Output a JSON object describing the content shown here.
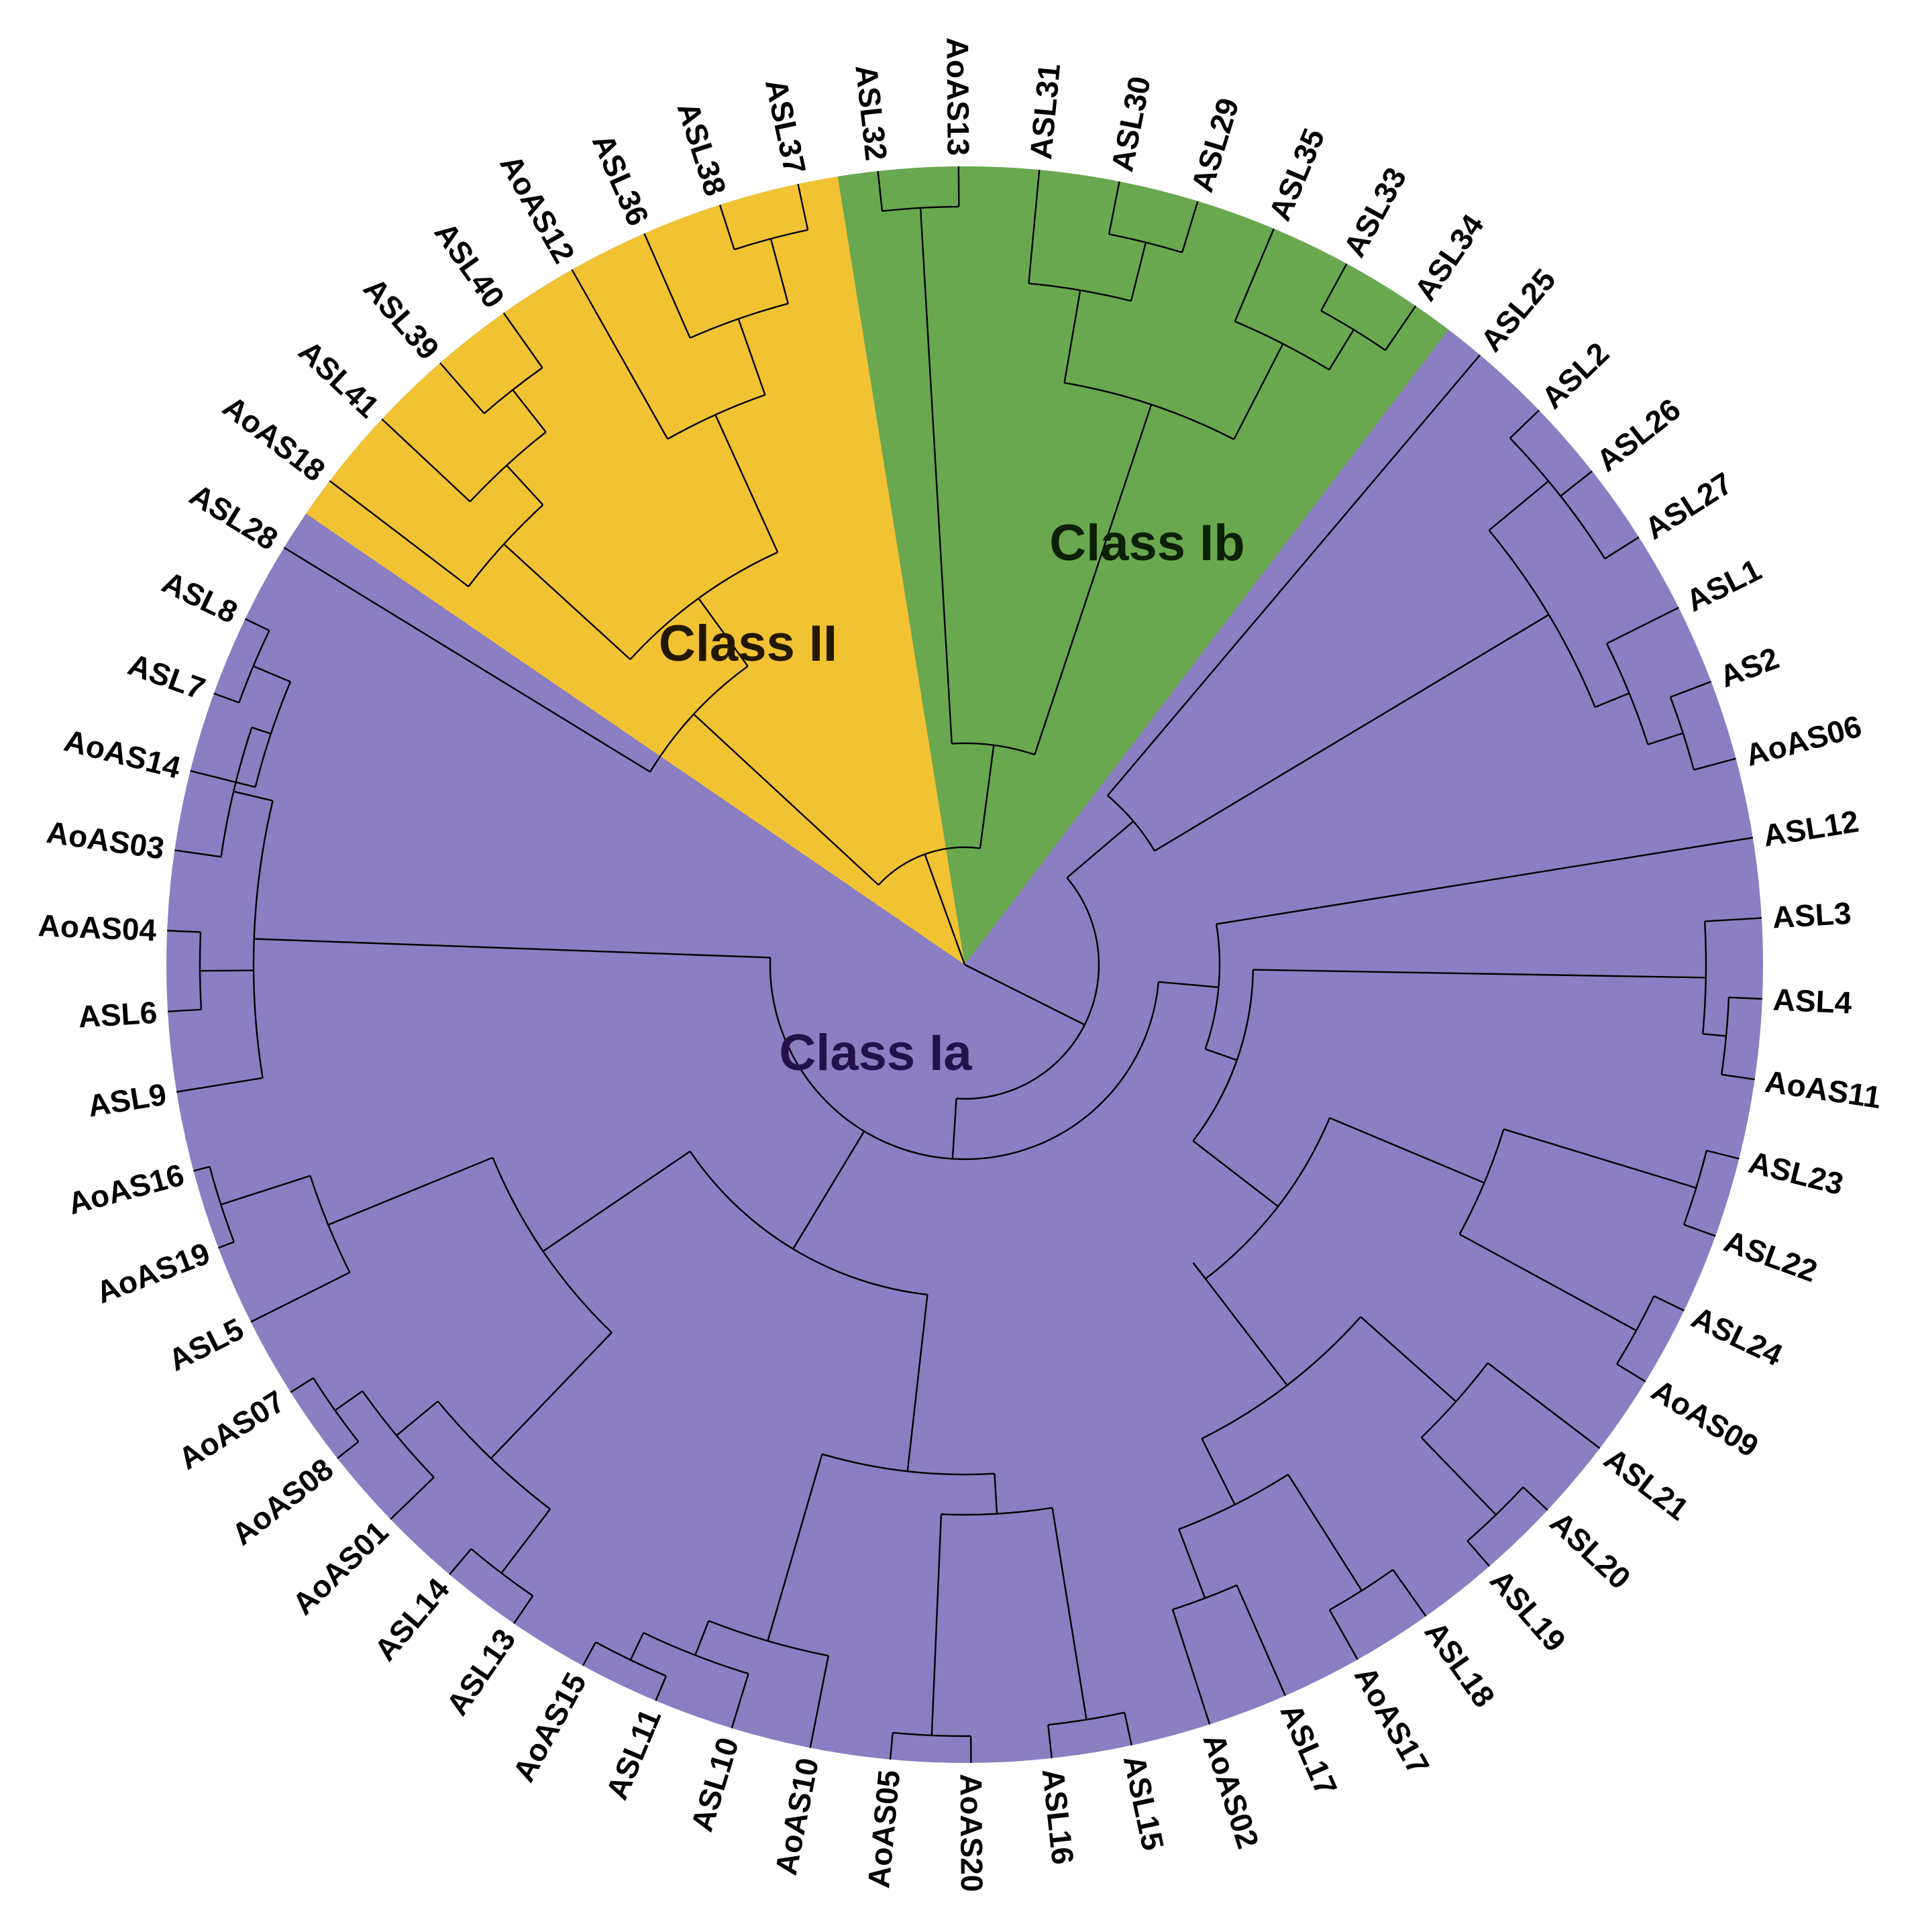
{
  "figure": "phylogenetic_tree",
  "layout": "circular",
  "colors": {
    "class_ia": "#8b7ec2",
    "class_ib": "#6aa84f",
    "class_ii": "#f1c232",
    "class_ia_text": "#23124a",
    "class_ib_text": "#0c2005",
    "class_ii_text": "#241700",
    "branch": "#000000",
    "label": "#000000"
  },
  "classes": [
    {
      "id": "class_ii",
      "label": "Class II"
    },
    {
      "id": "class_ib",
      "label": "Class Ib"
    },
    {
      "id": "class_ia",
      "label": "Class Ia"
    }
  ],
  "leaves": [
    {
      "name": "ASL28",
      "clade": "class_ia"
    },
    {
      "name": "AoAS18",
      "clade": "class_ii"
    },
    {
      "name": "ASL41",
      "clade": "class_ii"
    },
    {
      "name": "ASL39",
      "clade": "class_ii"
    },
    {
      "name": "ASL40",
      "clade": "class_ii"
    },
    {
      "name": "AoAS12",
      "clade": "class_ii"
    },
    {
      "name": "ASL36",
      "clade": "class_ii"
    },
    {
      "name": "ASL38",
      "clade": "class_ii"
    },
    {
      "name": "ASL37",
      "clade": "class_ii"
    },
    {
      "name": "ASL32",
      "clade": "class_ib"
    },
    {
      "name": "AoAS13",
      "clade": "class_ib"
    },
    {
      "name": "ASL31",
      "clade": "class_ib"
    },
    {
      "name": "ASL30",
      "clade": "class_ib"
    },
    {
      "name": "ASL29",
      "clade": "class_ib"
    },
    {
      "name": "ASL35",
      "clade": "class_ib"
    },
    {
      "name": "ASL33",
      "clade": "class_ib"
    },
    {
      "name": "ASL34",
      "clade": "class_ib"
    },
    {
      "name": "ASL25",
      "clade": "class_ia"
    },
    {
      "name": "ASL2",
      "clade": "class_ia"
    },
    {
      "name": "ASL26",
      "clade": "class_ia"
    },
    {
      "name": "ASL27",
      "clade": "class_ia"
    },
    {
      "name": "ASL1",
      "clade": "class_ia"
    },
    {
      "name": "AS2",
      "clade": "class_ia"
    },
    {
      "name": "AoAS06",
      "clade": "class_ia"
    },
    {
      "name": "ASL12",
      "clade": "class_ia"
    },
    {
      "name": "ASL3",
      "clade": "class_ia"
    },
    {
      "name": "ASL4",
      "clade": "class_ia"
    },
    {
      "name": "AoAS11",
      "clade": "class_ia"
    },
    {
      "name": "ASL23",
      "clade": "class_ia"
    },
    {
      "name": "ASL22",
      "clade": "class_ia"
    },
    {
      "name": "ASL24",
      "clade": "class_ia"
    },
    {
      "name": "AoAS09",
      "clade": "class_ia"
    },
    {
      "name": "ASL21",
      "clade": "class_ia"
    },
    {
      "name": "ASL20",
      "clade": "class_ia"
    },
    {
      "name": "ASL19",
      "clade": "class_ia"
    },
    {
      "name": "ASL18",
      "clade": "class_ia"
    },
    {
      "name": "AoAS17",
      "clade": "class_ia"
    },
    {
      "name": "ASL17",
      "clade": "class_ia"
    },
    {
      "name": "AoAS02",
      "clade": "class_ia"
    },
    {
      "name": "ASL15",
      "clade": "class_ia"
    },
    {
      "name": "ASL16",
      "clade": "class_ia"
    },
    {
      "name": "AoAS20",
      "clade": "class_ia"
    },
    {
      "name": "AoAS05",
      "clade": "class_ia"
    },
    {
      "name": "AoAS10",
      "clade": "class_ia"
    },
    {
      "name": "ASL10",
      "clade": "class_ia"
    },
    {
      "name": "ASL11",
      "clade": "class_ia"
    },
    {
      "name": "AoAS15",
      "clade": "class_ia"
    },
    {
      "name": "ASL13",
      "clade": "class_ia"
    },
    {
      "name": "ASL14",
      "clade": "class_ia"
    },
    {
      "name": "AoAS01",
      "clade": "class_ia"
    },
    {
      "name": "AoAS08",
      "clade": "class_ia"
    },
    {
      "name": "AoAS07",
      "clade": "class_ia"
    },
    {
      "name": "ASL5",
      "clade": "class_ia"
    },
    {
      "name": "AoAS19",
      "clade": "class_ia"
    },
    {
      "name": "AoAS16",
      "clade": "class_ia"
    },
    {
      "name": "ASL9",
      "clade": "class_ia"
    },
    {
      "name": "ASL6",
      "clade": "class_ia"
    },
    {
      "name": "AoAS04",
      "clade": "class_ia"
    },
    {
      "name": "AoAS03",
      "clade": "class_ia"
    },
    {
      "name": "AoAS14",
      "clade": "class_ia"
    },
    {
      "name": "ASL7",
      "clade": "class_ia"
    },
    {
      "name": "ASL8",
      "clade": "class_ia"
    }
  ]
}
